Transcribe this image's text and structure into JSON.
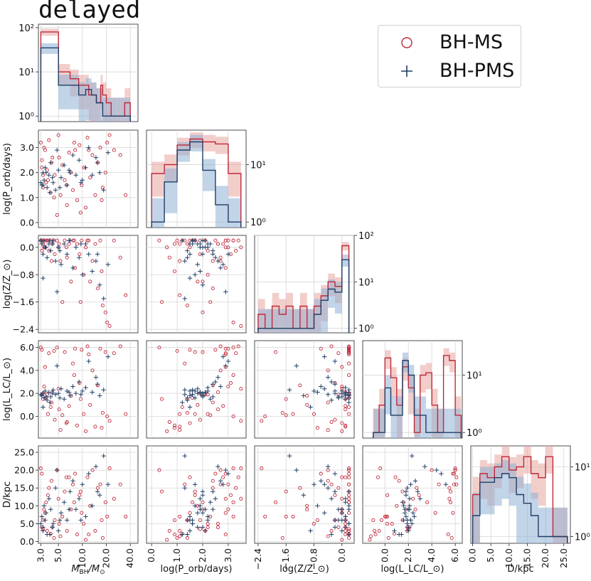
{
  "title": "delayed",
  "legend": [
    {
      "label": "BH-MS",
      "color": "#c0283a",
      "marker": "circle"
    },
    {
      "label": "BH-PMS",
      "color": "#1f3f66",
      "marker": "plus"
    }
  ],
  "colors": {
    "ms": "#c0283a",
    "pms": "#1f3f66",
    "ms_band": "#e8a6a0",
    "pms_band": "#8fb1d6",
    "grid": "#d6d6d6"
  },
  "chart_data": {
    "type": "scatter",
    "variables": [
      {
        "key": "mbh",
        "label": "M_BH/M_⊙",
        "label_main": "M",
        "label_sub": "BH",
        "label_rest": "/M",
        "label_sub2": "⊙",
        "scale": "log",
        "range": [
          2.8,
          50
        ],
        "ticks": [
          {
            "v": 3,
            "t": "3.0"
          },
          {
            "v": 5,
            "t": "5.0"
          },
          {
            "v": 10,
            "t": "10.0"
          },
          {
            "v": 20,
            "t": "20.0"
          },
          {
            "v": 40,
            "t": "40.0"
          }
        ]
      },
      {
        "key": "porb",
        "label": "log(P_orb/days)",
        "scale": "linear",
        "range": [
          -0.2,
          3.7
        ],
        "ticks": [
          {
            "v": 0,
            "t": "0.0"
          },
          {
            "v": 1,
            "t": "1.0"
          },
          {
            "v": 2,
            "t": "2.0"
          },
          {
            "v": 3,
            "t": "3.0"
          }
        ]
      },
      {
        "key": "z",
        "label": "log(Z/Z_⊙)",
        "scale": "linear",
        "range": [
          -2.5,
          0.35
        ],
        "ticks": [
          {
            "v": -2.4,
            "t": "−2.4"
          },
          {
            "v": -1.6,
            "t": "−1.6"
          },
          {
            "v": -0.8,
            "t": "−0.8"
          },
          {
            "v": 0.0,
            "t": "0.0"
          }
        ]
      },
      {
        "key": "llc",
        "label": "log(L_LC/L_⊙)",
        "scale": "linear",
        "range": [
          -1.9,
          6.6
        ],
        "ticks": [
          {
            "v": 0,
            "t": "0.0"
          },
          {
            "v": 2,
            "t": "2.0"
          },
          {
            "v": 4,
            "t": "4.0"
          },
          {
            "v": 6,
            "t": "6.0"
          }
        ]
      },
      {
        "key": "d",
        "label": "D/kpc",
        "scale": "linear",
        "range": [
          -0.5,
          26.8
        ],
        "ticks": [
          {
            "v": 0,
            "t": "0.0"
          },
          {
            "v": 5,
            "t": "5.0"
          },
          {
            "v": 10,
            "t": "10.0"
          },
          {
            "v": 15,
            "t": "15.0"
          },
          {
            "v": 20,
            "t": "20.0"
          },
          {
            "v": 25,
            "t": "25.0"
          }
        ]
      }
    ],
    "hist_y": {
      "scale": "log",
      "ticks_diag0": [
        {
          "v": 1,
          "t": "10⁰"
        },
        {
          "v": 10,
          "t": "10¹"
        },
        {
          "v": 100,
          "t": "10²"
        }
      ],
      "ticks_right": [
        {
          "v": 1,
          "t": "10⁰"
        },
        {
          "v": 10,
          "t": "10¹"
        },
        {
          "v": 100,
          "t": "10²"
        }
      ]
    },
    "histograms": [
      {
        "var": 0,
        "ylim": [
          0.75,
          120
        ],
        "edges": [
          3,
          4,
          5,
          6,
          7,
          8,
          9,
          10,
          11,
          12,
          13,
          14,
          15,
          16,
          17,
          18,
          19,
          20,
          21,
          22,
          23,
          24,
          25,
          26,
          27,
          28,
          29,
          30,
          31,
          32,
          33,
          34,
          35,
          36,
          37,
          38,
          39,
          40
        ],
        "ms": [
          80,
          80,
          10,
          10,
          7,
          7,
          5,
          5,
          5,
          3,
          3,
          3,
          2,
          2,
          5,
          3,
          3,
          2,
          2,
          2,
          1,
          1,
          1,
          1,
          1,
          1,
          1,
          1,
          1,
          1,
          1,
          2,
          2,
          2,
          2,
          2,
          2
        ],
        "pms": [
          35,
          35,
          5,
          5,
          5,
          5,
          3,
          3,
          4,
          4,
          3,
          3,
          2,
          2,
          2,
          1,
          1,
          1,
          1,
          1,
          1,
          1,
          1,
          1,
          1,
          1,
          1,
          1,
          1,
          1,
          1,
          1,
          1,
          1,
          1,
          1,
          1
        ]
      },
      {
        "var": 1,
        "ylim": [
          0.8,
          40
        ],
        "edges": [
          0.0,
          0.5,
          1.0,
          1.5,
          2.0,
          2.5,
          3.0,
          3.5
        ],
        "ms": [
          7,
          10,
          22,
          28,
          25,
          23,
          7
        ],
        "pms": [
          1,
          5,
          18,
          25,
          8,
          2,
          1
        ]
      },
      {
        "var": 2,
        "ylim": [
          0.8,
          100
        ],
        "edges": [
          -2.4,
          -2.2,
          -2.0,
          -1.8,
          -1.6,
          -1.4,
          -1.2,
          -1.0,
          -0.8,
          -0.6,
          -0.4,
          -0.2,
          0.0,
          0.2
        ],
        "ms": [
          2,
          1,
          3,
          2,
          3,
          1,
          3,
          1,
          3,
          5,
          10,
          8,
          60
        ],
        "pms": [
          1,
          1,
          1,
          1,
          1,
          1,
          1,
          1,
          2,
          4,
          7,
          6,
          30
        ]
      },
      {
        "var": 3,
        "ylim": [
          0.8,
          40
        ],
        "edges": [
          -1.0,
          -0.5,
          0.0,
          0.5,
          1.0,
          1.5,
          2.0,
          2.5,
          3.0,
          3.5,
          4.0,
          4.5,
          5.0,
          5.5,
          6.0,
          6.5
        ],
        "ms": [
          1,
          3,
          20,
          9,
          3,
          14,
          6,
          1,
          10,
          11,
          3,
          1,
          22,
          18,
          2
        ],
        "pms": [
          1,
          1,
          6,
          2,
          2,
          18,
          10,
          2,
          2,
          1,
          1,
          1,
          1,
          1,
          1
        ]
      },
      {
        "var": 4,
        "ylim": [
          0.8,
          20
        ],
        "edges": [
          0,
          2,
          4,
          6,
          8,
          10,
          12,
          14,
          16,
          18,
          20,
          22,
          24,
          26
        ],
        "ms": [
          4,
          8,
          7,
          10,
          14,
          9,
          10,
          14,
          8,
          7,
          14,
          1,
          1
        ],
        "pms": [
          2,
          6,
          6,
          7,
          8,
          7,
          4,
          3,
          2,
          1,
          1,
          1,
          1
        ]
      }
    ],
    "points_ms": [
      [
        3.0,
        3.2,
        0.2,
        6.0,
        20.5
      ],
      [
        3.1,
        2.5,
        0.2,
        5.8,
        19
      ],
      [
        3.2,
        1.4,
        0.1,
        1.5,
        6
      ],
      [
        3.4,
        2.9,
        0.0,
        4.3,
        8
      ],
      [
        3.5,
        1.6,
        0.2,
        1.6,
        11
      ],
      [
        3.6,
        2.1,
        0.2,
        1.9,
        3
      ],
      [
        3.8,
        3.3,
        -0.1,
        5.5,
        15
      ],
      [
        4.0,
        1.2,
        0.2,
        0.8,
        2.2
      ],
      [
        4.2,
        2.6,
        0.1,
        2.1,
        4
      ],
      [
        4.5,
        1.9,
        -0.2,
        -0.3,
        6
      ],
      [
        4.8,
        0.3,
        0.2,
        6.0,
        20
      ],
      [
        5.0,
        3.5,
        0.0,
        2.4,
        12
      ],
      [
        5.3,
        1.1,
        -0.4,
        -1.2,
        1.5
      ],
      [
        5.6,
        2.3,
        -1.6,
        0.1,
        7
      ],
      [
        6.0,
        1.7,
        0.2,
        5.6,
        14
      ],
      [
        6.4,
        0.7,
        -0.3,
        -0.5,
        3
      ],
      [
        6.8,
        2.8,
        0.1,
        0.9,
        18
      ],
      [
        7.2,
        2.0,
        -1.0,
        1.8,
        9
      ],
      [
        7.6,
        1.3,
        0.2,
        4.6,
        16
      ],
      [
        8.1,
        2.9,
        -0.6,
        5.9,
        19
      ],
      [
        8.6,
        0.9,
        0.1,
        -0.8,
        2
      ],
      [
        9.2,
        3.1,
        -0.2,
        2.9,
        13
      ],
      [
        9.8,
        1.5,
        0.2,
        5.8,
        8
      ],
      [
        10.4,
        2.2,
        -0.8,
        0.2,
        5
      ],
      [
        11.0,
        0.6,
        0.0,
        -1.3,
        0.5
      ],
      [
        11.6,
        3.4,
        0.2,
        6.1,
        18
      ],
      [
        12.5,
        1.8,
        -1.0,
        1.0,
        10
      ],
      [
        13.4,
        2.7,
        -0.4,
        4.0,
        20
      ],
      [
        14.5,
        1.1,
        0.1,
        -0.9,
        3
      ],
      [
        15.6,
        2.4,
        -1.2,
        2.7,
        15
      ],
      [
        16.8,
        3.0,
        0.2,
        5.9,
        16
      ],
      [
        18.0,
        1.4,
        -1.7,
        0.3,
        1
      ],
      [
        19.5,
        2.0,
        -1.9,
        5.6,
        11
      ],
      [
        20.5,
        3.2,
        -2.2,
        0.0,
        7
      ],
      [
        22.0,
        3.5,
        -2.3,
        -0.4,
        20.5
      ],
      [
        25.0,
        2.9,
        0.2,
        5.5,
        12
      ],
      [
        30.0,
        2.7,
        -0.3,
        6.1,
        16
      ],
      [
        35.0,
        1.1,
        -1.4,
        0.2,
        7
      ],
      [
        3.1,
        2.2,
        -0.1,
        1.9,
        4
      ],
      [
        3.3,
        3.0,
        0.0,
        2.6,
        9
      ],
      [
        3.7,
        1.7,
        0.2,
        0.2,
        13
      ],
      [
        4.1,
        2.4,
        -0.4,
        1.2,
        17
      ],
      [
        4.4,
        1.0,
        0.2,
        5.7,
        1
      ],
      [
        5.1,
        2.6,
        0.1,
        0.6,
        5
      ],
      [
        6.3,
        1.5,
        0.0,
        -0.6,
        18
      ],
      [
        7.9,
        3.2,
        0.2,
        3.6,
        11
      ],
      [
        9.5,
        0.4,
        -1.6,
        1.5,
        14
      ],
      [
        12.0,
        2.9,
        0.2,
        5.4,
        2
      ],
      [
        17.5,
        0.9,
        -0.7,
        -1.0,
        6
      ],
      [
        3.2,
        1.9,
        0.2,
        2.0,
        3.5
      ]
    ],
    "points_pms": [
      [
        3.1,
        1.5,
        0.1,
        1.8,
        7
      ],
      [
        3.2,
        2.0,
        -0.2,
        2.0,
        4
      ],
      [
        3.3,
        1.7,
        0.2,
        1.6,
        10
      ],
      [
        3.4,
        2.2,
        0.0,
        2.2,
        6
      ],
      [
        3.6,
        1.4,
        -0.3,
        1.4,
        2
      ],
      [
        3.8,
        1.9,
        0.1,
        2.1,
        12
      ],
      [
        4.0,
        2.4,
        -0.1,
        1.7,
        9
      ],
      [
        4.3,
        1.6,
        0.2,
        2.3,
        5
      ],
      [
        4.6,
        1.3,
        -0.4,
        1.9,
        15
      ],
      [
        5.0,
        2.1,
        0.0,
        2.0,
        3
      ],
      [
        5.4,
        1.8,
        -0.5,
        2.4,
        8
      ],
      [
        5.9,
        2.3,
        0.1,
        1.5,
        11
      ],
      [
        6.4,
        1.5,
        -0.2,
        2.2,
        6
      ],
      [
        7.0,
        2.0,
        0.2,
        1.8,
        14
      ],
      [
        7.6,
        2.7,
        -0.6,
        2.6,
        17
      ],
      [
        8.3,
        1.9,
        0.0,
        2.0,
        9
      ],
      [
        9.1,
        2.5,
        -0.3,
        3.0,
        12
      ],
      [
        10.0,
        1.7,
        -0.8,
        2.2,
        16
      ],
      [
        11.0,
        2.2,
        0.1,
        2.5,
        7
      ],
      [
        12.0,
        3.0,
        -0.2,
        4.8,
        19
      ],
      [
        13.3,
        1.9,
        -0.7,
        2.1,
        10
      ],
      [
        14.8,
        2.6,
        -0.4,
        3.4,
        21
      ],
      [
        16.5,
        2.0,
        -1.1,
        1.8,
        13
      ],
      [
        18.5,
        1.3,
        -1.5,
        2.3,
        24
      ],
      [
        21.0,
        2.8,
        -0.5,
        5.2,
        16
      ],
      [
        3.0,
        1.6,
        0.2,
        1.9,
        5
      ],
      [
        3.5,
        2.0,
        0.0,
        1.7,
        8
      ],
      [
        4.2,
        1.8,
        0.1,
        2.0,
        4
      ],
      [
        5.2,
        1.4,
        -0.1,
        1.6,
        6
      ],
      [
        6.8,
        2.1,
        0.2,
        2.1,
        9
      ],
      [
        3.2,
        1.5,
        -0.9,
        0.8,
        3
      ],
      [
        3.9,
        1.2,
        0.2,
        1.2,
        2
      ],
      [
        4.8,
        2.9,
        -1.3,
        4.4,
        20
      ],
      [
        9.6,
        1.6,
        0.1,
        1.9,
        6
      ],
      [
        15.5,
        2.4,
        -0.2,
        2.8,
        14
      ]
    ]
  }
}
